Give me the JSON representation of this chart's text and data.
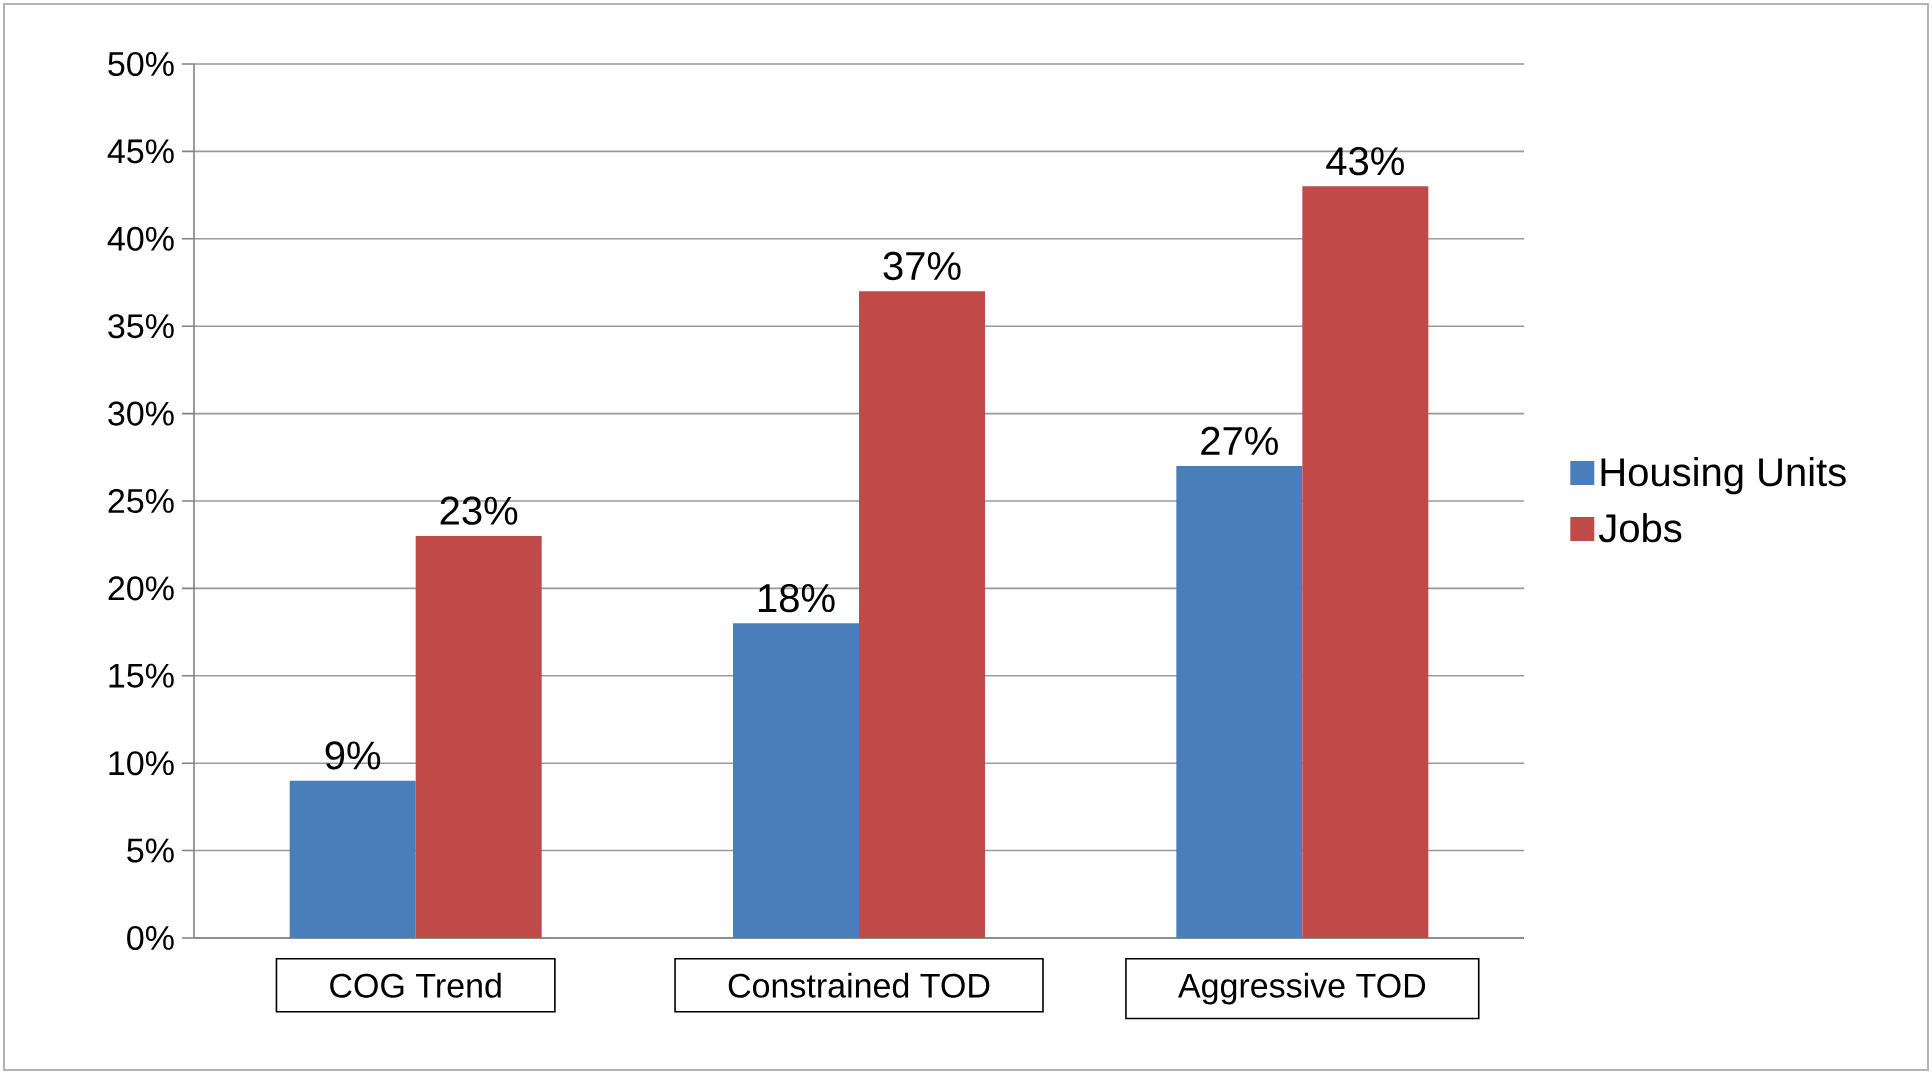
{
  "chart_data": {
    "type": "bar",
    "categories": [
      "COG Trend",
      "Constrained TOD",
      "Aggressive TOD"
    ],
    "series": [
      {
        "name": "Housing Units",
        "color": "#4a7ebb",
        "values": [
          9,
          18,
          27
        ],
        "value_labels": [
          "9%",
          "18%",
          "27%"
        ]
      },
      {
        "name": "Jobs",
        "color": "#be4b48",
        "values": [
          23,
          37,
          43
        ],
        "value_labels": [
          "23%",
          "37%",
          "43%"
        ]
      }
    ],
    "ylim": [
      0,
      50
    ],
    "yticks": [
      {
        "value": 0,
        "label": "0%"
      },
      {
        "value": 5,
        "label": "5%"
      },
      {
        "value": 10,
        "label": "10%"
      },
      {
        "value": 15,
        "label": "15%"
      },
      {
        "value": 20,
        "label": "20%"
      },
      {
        "value": 25,
        "label": "25%"
      },
      {
        "value": 30,
        "label": "30%"
      },
      {
        "value": 35,
        "label": "35%"
      },
      {
        "value": 40,
        "label": "40%"
      },
      {
        "value": 45,
        "label": "45%"
      },
      {
        "value": 50,
        "label": "50%"
      }
    ],
    "grid": "y",
    "legend": "right"
  }
}
